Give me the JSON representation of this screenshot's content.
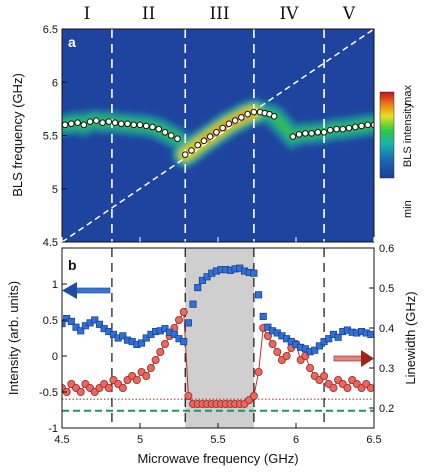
{
  "regions": [
    "I",
    "II",
    "III",
    "IV",
    "V"
  ],
  "region_bounds": [
    4.82,
    5.29,
    5.73,
    6.18
  ],
  "panel_a": {
    "label": "a",
    "ylabel": "BLS frequency (GHz)",
    "ylim": [
      4.5,
      6.5
    ],
    "yticks": [
      "4.5",
      "5",
      "5.5",
      "6",
      "6.5"
    ],
    "colorbar": {
      "title": "BLS intensity",
      "max": "max",
      "min": "min"
    },
    "diagonal": [
      [
        4.5,
        4.5
      ],
      [
        6.5,
        6.5
      ]
    ]
  },
  "panel_b": {
    "label": "b",
    "ylabel_left": "Intensity (arb. units)",
    "ylabel_right": "Linewidth (GHz)",
    "ylim_left": [
      -1,
      1.5
    ],
    "yticks_left": [
      "-1",
      "-0.5",
      "0",
      "0.5",
      "1"
    ],
    "ylim_right": [
      0.15,
      0.6
    ],
    "yticks_right": [
      "0.2",
      "0.3",
      "0.4",
      "0.5",
      "0.6"
    ],
    "shade_range": [
      5.29,
      5.73
    ],
    "red_dotted_level": -0.6,
    "green_dashed_level": -0.76
  },
  "xlabel": "Microwave frequency (GHz)",
  "xlim": [
    4.5,
    6.5
  ],
  "xticks": [
    "4.5",
    "5",
    "5.5",
    "6",
    "6.5"
  ],
  "colors": {
    "blue": "#2f6fd6",
    "red": "#e9675f",
    "green": "#1a9a55",
    "shade": "#cfcfcf"
  },
  "chart_data": [
    {
      "type": "scatter",
      "title": "",
      "xlabel": "Microwave frequency (GHz)",
      "ylabel": "BLS frequency (GHz)",
      "xlim": [
        4.5,
        6.5
      ],
      "ylim": [
        4.5,
        6.5
      ],
      "series": [
        {
          "x": [
            4.52,
            4.56,
            4.6,
            4.64,
            4.68,
            4.72,
            4.76,
            4.8,
            4.84,
            4.88,
            4.92,
            4.96,
            5.0,
            5.04,
            5.08,
            5.12,
            5.16,
            5.2,
            5.24,
            5.29,
            5.33,
            5.37,
            5.41,
            5.45,
            5.49,
            5.53,
            5.57,
            5.61,
            5.65,
            5.69,
            5.73,
            5.77,
            5.8,
            5.83,
            5.86,
            5.98,
            6.02,
            6.06,
            6.1,
            6.14,
            6.18,
            6.22,
            6.26,
            6.3,
            6.34,
            6.38,
            6.42,
            6.46,
            6.5
          ],
          "values": [
            5.6,
            5.61,
            5.62,
            5.6,
            5.63,
            5.64,
            5.62,
            5.63,
            5.62,
            5.61,
            5.61,
            5.6,
            5.6,
            5.59,
            5.58,
            5.56,
            5.53,
            5.5,
            5.47,
            5.32,
            5.36,
            5.41,
            5.45,
            5.49,
            5.53,
            5.57,
            5.61,
            5.64,
            5.67,
            5.7,
            5.72,
            5.72,
            5.71,
            5.7,
            5.68,
            5.49,
            5.51,
            5.52,
            5.52,
            5.53,
            5.53,
            5.55,
            5.56,
            5.56,
            5.57,
            5.58,
            5.59,
            5.6,
            5.6
          ]
        }
      ]
    },
    {
      "type": "line",
      "title": "",
      "xlabel": "Microwave frequency (GHz)",
      "ylabel": "Intensity (arb. units)",
      "xlim": [
        4.5,
        6.5
      ],
      "ylim": [
        -1,
        1.5
      ],
      "series": [
        {
          "axis": "left",
          "x": [
            4.5,
            4.53,
            4.56,
            4.59,
            4.62,
            4.65,
            4.68,
            4.71,
            4.74,
            4.77,
            4.8,
            4.83,
            4.86,
            4.89,
            4.92,
            4.95,
            4.98,
            5.01,
            5.04,
            5.07,
            5.1,
            5.13,
            5.16,
            5.19,
            5.22,
            5.25,
            5.28,
            5.31,
            5.34,
            5.37,
            5.4,
            5.43,
            5.46,
            5.49,
            5.52,
            5.55,
            5.58,
            5.61,
            5.64,
            5.67,
            5.7,
            5.73,
            5.76,
            5.79,
            5.82,
            5.85,
            5.88,
            5.91,
            5.94,
            5.97,
            6.0,
            6.03,
            6.06,
            6.09,
            6.12,
            6.15,
            6.18,
            6.21,
            6.24,
            6.27,
            6.3,
            6.33,
            6.36,
            6.39,
            6.42,
            6.45,
            6.48
          ],
          "values": [
            0.45,
            0.52,
            0.48,
            0.4,
            0.35,
            0.42,
            0.46,
            0.5,
            0.44,
            0.38,
            0.34,
            0.3,
            0.25,
            0.28,
            0.22,
            0.2,
            0.16,
            0.18,
            0.25,
            0.3,
            0.34,
            0.35,
            0.38,
            0.33,
            0.3,
            0.24,
            0.2,
            0.46,
            0.72,
            0.95,
            1.05,
            1.1,
            1.15,
            1.18,
            1.2,
            1.2,
            1.19,
            1.21,
            1.22,
            1.18,
            1.16,
            1.15,
            0.85,
            0.55,
            0.4,
            0.35,
            0.32,
            0.28,
            0.24,
            0.2,
            0.16,
            0.12,
            0.1,
            0.06,
            0.08,
            0.14,
            0.2,
            0.24,
            0.3,
            0.26,
            0.34,
            0.36,
            0.33,
            0.32,
            0.34,
            0.32,
            0.3
          ]
        },
        {
          "axis": "right",
          "x": [
            4.5,
            4.53,
            4.56,
            4.59,
            4.62,
            4.65,
            4.68,
            4.71,
            4.74,
            4.77,
            4.8,
            4.83,
            4.86,
            4.89,
            4.92,
            4.95,
            4.98,
            5.01,
            5.04,
            5.07,
            5.1,
            5.13,
            5.16,
            5.19,
            5.22,
            5.25,
            5.28,
            5.31,
            5.34,
            5.37,
            5.4,
            5.43,
            5.46,
            5.49,
            5.52,
            5.55,
            5.58,
            5.61,
            5.64,
            5.67,
            5.7,
            5.73,
            5.76,
            5.79,
            5.82,
            5.85,
            5.88,
            5.91,
            5.94,
            5.97,
            6.0,
            6.03,
            6.06,
            6.09,
            6.12,
            6.15,
            6.18,
            6.21,
            6.24,
            6.27,
            6.3,
            6.33,
            6.36,
            6.39,
            6.42,
            6.45,
            6.48
          ],
          "values": [
            0.25,
            0.24,
            0.26,
            0.25,
            0.24,
            0.26,
            0.25,
            0.24,
            0.25,
            0.26,
            0.25,
            0.27,
            0.26,
            0.25,
            0.27,
            0.28,
            0.27,
            0.29,
            0.28,
            0.3,
            0.32,
            0.34,
            0.36,
            0.38,
            0.4,
            0.42,
            0.44,
            0.23,
            0.21,
            0.21,
            0.21,
            0.21,
            0.21,
            0.21,
            0.21,
            0.21,
            0.21,
            0.21,
            0.21,
            0.21,
            0.22,
            0.23,
            0.29,
            0.4,
            0.38,
            0.36,
            0.34,
            0.32,
            0.33,
            0.35,
            0.36,
            0.32,
            0.33,
            0.3,
            0.28,
            0.27,
            0.28,
            0.26,
            0.25,
            0.27,
            0.26,
            0.25,
            0.27,
            0.26,
            0.25,
            0.26,
            0.25
          ]
        }
      ]
    }
  ]
}
